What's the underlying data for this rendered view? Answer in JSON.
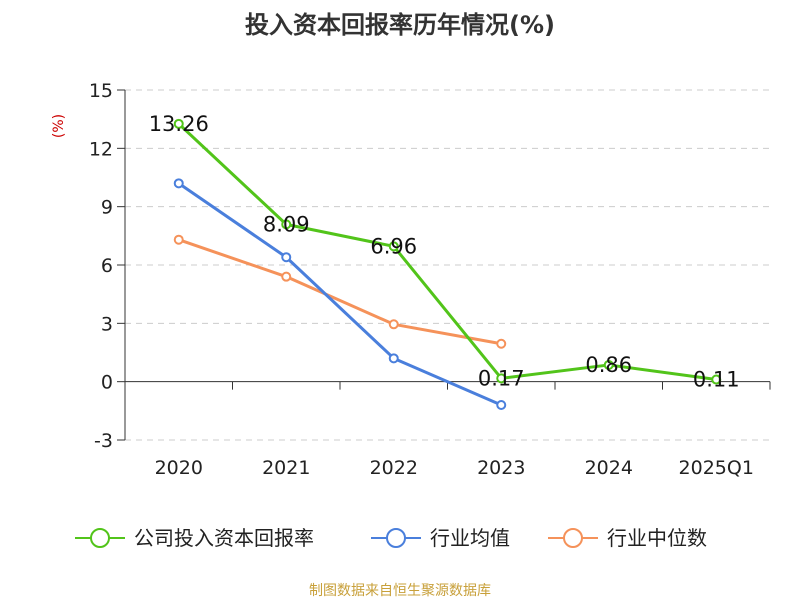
{
  "title": "投入资本回报率历年情况(%)",
  "source_text": "制图数据来自恒生聚源数据库",
  "colors": {
    "source": "#c8a03a",
    "ylabel": "#cc0000"
  },
  "chart_data": {
    "type": "line",
    "title": "投入资本回报率历年情况(%)",
    "xlabel": "",
    "ylabel": "(%)",
    "categories": [
      "2020",
      "2021",
      "2022",
      "2023",
      "2024",
      "2025Q1"
    ],
    "ylim": [
      -3,
      15
    ],
    "yticks": [
      "15",
      "12",
      "9",
      "6",
      "3",
      "0",
      "-3"
    ],
    "grid": true,
    "legend_position": "bottom",
    "series": [
      {
        "name": "公司投入资本回报率",
        "color": "#52c41a",
        "values": [
          13.26,
          8.09,
          6.96,
          0.17,
          0.86,
          0.11
        ],
        "labels": [
          "13.26",
          "8.09",
          "6.96",
          "0.17",
          "0.86",
          "0.11"
        ]
      },
      {
        "name": "行业均值",
        "color": "#4a7fdc",
        "values": [
          10.2,
          6.4,
          1.2,
          -1.2,
          null,
          null
        ],
        "labels": null
      },
      {
        "name": "行业中位数",
        "color": "#f5925a",
        "values": [
          7.3,
          5.4,
          2.95,
          1.95,
          null,
          null
        ],
        "labels": null
      }
    ]
  }
}
